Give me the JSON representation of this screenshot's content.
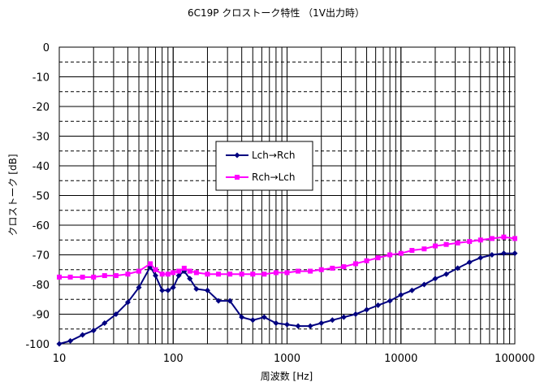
{
  "chart_data": {
    "type": "line",
    "title": "6C19P クロストーク特性 （1V出力時）",
    "xlabel": "周波数 [Hz]",
    "ylabel": "クロストーク [dB]",
    "xscale": "log",
    "xlim": [
      10,
      100000
    ],
    "ylim": [
      -100,
      0
    ],
    "x_ticks": [
      "10",
      "100",
      "1000",
      "10000",
      "100000"
    ],
    "y_ticks": [
      "0",
      "-10",
      "-20",
      "-30",
      "-40",
      "-50",
      "-60",
      "-70",
      "-80",
      "-90",
      "-100"
    ],
    "grid": true,
    "legend_position": "center-left",
    "series": [
      {
        "name": "Lch→Rch",
        "color": "#000080",
        "marker": "diamond",
        "points": [
          [
            10,
            -100
          ],
          [
            12.5,
            -99
          ],
          [
            16,
            -97
          ],
          [
            20,
            -95.5
          ],
          [
            25,
            -93
          ],
          [
            31.5,
            -90
          ],
          [
            40,
            -86
          ],
          [
            50,
            -81
          ],
          [
            63,
            -74
          ],
          [
            70,
            -77
          ],
          [
            80,
            -82
          ],
          [
            90,
            -82
          ],
          [
            100,
            -81
          ],
          [
            112,
            -77
          ],
          [
            125,
            -75.5
          ],
          [
            140,
            -78
          ],
          [
            160,
            -81.5
          ],
          [
            200,
            -82
          ],
          [
            250,
            -85.5
          ],
          [
            315,
            -85.5
          ],
          [
            400,
            -91
          ],
          [
            500,
            -92
          ],
          [
            630,
            -91
          ],
          [
            800,
            -93
          ],
          [
            1000,
            -93.5
          ],
          [
            1250,
            -94
          ],
          [
            1600,
            -94
          ],
          [
            2000,
            -93
          ],
          [
            2500,
            -92
          ],
          [
            3150,
            -91
          ],
          [
            4000,
            -90
          ],
          [
            5000,
            -88.5
          ],
          [
            6300,
            -87
          ],
          [
            8000,
            -85.5
          ],
          [
            10000,
            -83.5
          ],
          [
            12500,
            -82
          ],
          [
            16000,
            -80
          ],
          [
            20000,
            -78
          ],
          [
            25000,
            -76.5
          ],
          [
            31500,
            -74.5
          ],
          [
            40000,
            -72.5
          ],
          [
            50000,
            -71
          ],
          [
            63000,
            -70
          ],
          [
            80000,
            -69.5
          ],
          [
            100000,
            -69.5
          ]
        ]
      },
      {
        "name": "Rch→Lch",
        "color": "#FF00FF",
        "marker": "square",
        "points": [
          [
            10,
            -77.5
          ],
          [
            12.5,
            -77.5
          ],
          [
            16,
            -77.5
          ],
          [
            20,
            -77.5
          ],
          [
            25,
            -77
          ],
          [
            31.5,
            -77
          ],
          [
            40,
            -76.5
          ],
          [
            50,
            -75.5
          ],
          [
            63,
            -73
          ],
          [
            70,
            -75
          ],
          [
            80,
            -76.5
          ],
          [
            90,
            -76.5
          ],
          [
            100,
            -76
          ],
          [
            112,
            -75.5
          ],
          [
            125,
            -74.5
          ],
          [
            140,
            -75.5
          ],
          [
            160,
            -76
          ],
          [
            200,
            -76.5
          ],
          [
            250,
            -76.5
          ],
          [
            315,
            -76.5
          ],
          [
            400,
            -76.5
          ],
          [
            500,
            -76.5
          ],
          [
            630,
            -76.5
          ],
          [
            800,
            -76
          ],
          [
            1000,
            -76
          ],
          [
            1250,
            -75.5
          ],
          [
            1600,
            -75.5
          ],
          [
            2000,
            -75
          ],
          [
            2500,
            -74.5
          ],
          [
            3150,
            -74
          ],
          [
            4000,
            -73
          ],
          [
            5000,
            -72
          ],
          [
            6300,
            -71
          ],
          [
            8000,
            -70
          ],
          [
            10000,
            -69.5
          ],
          [
            12500,
            -68.5
          ],
          [
            16000,
            -68
          ],
          [
            20000,
            -67
          ],
          [
            25000,
            -66.5
          ],
          [
            31500,
            -66
          ],
          [
            40000,
            -65.5
          ],
          [
            50000,
            -65
          ],
          [
            63000,
            -64.5
          ],
          [
            80000,
            -64
          ],
          [
            100000,
            -64.5
          ]
        ]
      }
    ]
  }
}
